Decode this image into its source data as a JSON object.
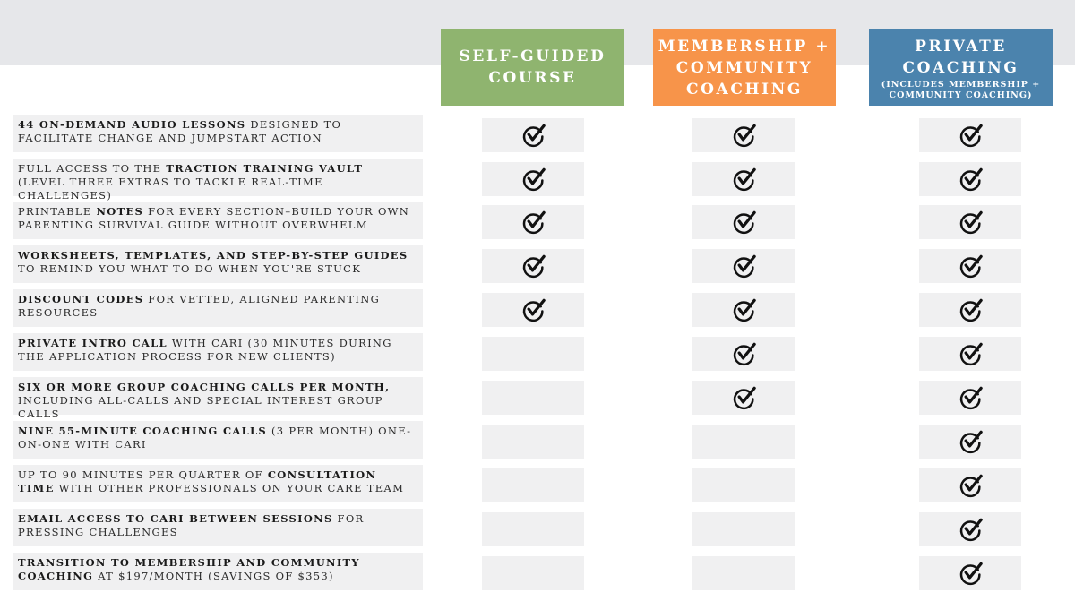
{
  "colors": {
    "self_guided": "#8fb46f",
    "membership": "#f7944a",
    "private": "#4b83ad",
    "cell_bg": "#f0f0f1",
    "top_band": "#e6e7ea"
  },
  "plans": [
    {
      "title": "SELF-GUIDED\nCOURSE",
      "subtitle": ""
    },
    {
      "title": "MEMBERSHIP +\nCOMMUNITY\nCOACHING",
      "subtitle": ""
    },
    {
      "title": "PRIVATE\nCOACHING",
      "subtitle": "(INCLUDES MEMBERSHIP +\nCOMMUNITY COACHING)"
    }
  ],
  "features": [
    {
      "segments": [
        {
          "text": "44 on-demand audio lessons",
          "bold": true
        },
        {
          "text": " designed to facilitate change and jumpstart action",
          "bold": false
        }
      ],
      "checks": [
        true,
        true,
        true
      ]
    },
    {
      "segments": [
        {
          "text": "Full access to the ",
          "bold": false
        },
        {
          "text": "Traction Training Vault",
          "bold": true
        },
        {
          "text": " (Level Three extras to tackle real-time challenges)",
          "bold": false
        }
      ],
      "checks": [
        true,
        true,
        true
      ]
    },
    {
      "segments": [
        {
          "text": "Printable ",
          "bold": false
        },
        {
          "text": "notes",
          "bold": true
        },
        {
          "text": " for every section–build your own parenting survival guide without overwhelm",
          "bold": false
        }
      ],
      "checks": [
        true,
        true,
        true
      ]
    },
    {
      "segments": [
        {
          "text": "Worksheets, templates, and step-by-step guides",
          "bold": true
        },
        {
          "text": " to remind you what to do when you're stuck",
          "bold": false
        }
      ],
      "checks": [
        true,
        true,
        true
      ]
    },
    {
      "segments": [
        {
          "text": "Discount codes",
          "bold": true
        },
        {
          "text": " for vetted, aligned parenting resources",
          "bold": false
        }
      ],
      "checks": [
        true,
        true,
        true
      ]
    },
    {
      "segments": [
        {
          "text": "Private intro call",
          "bold": true
        },
        {
          "text": " with Cari (30 minutes during the application process for new clients)",
          "bold": false
        }
      ],
      "checks": [
        false,
        true,
        true
      ]
    },
    {
      "segments": [
        {
          "text": "Six or more group coaching calls per month,",
          "bold": true
        },
        {
          "text": " including all-calls and special interest group calls",
          "bold": false
        }
      ],
      "checks": [
        false,
        true,
        true
      ]
    },
    {
      "segments": [
        {
          "text": "Nine 55-minute coaching calls",
          "bold": true
        },
        {
          "text": " (3 per month) one-on-one with Cari",
          "bold": false
        }
      ],
      "checks": [
        false,
        false,
        true
      ]
    },
    {
      "segments": [
        {
          "text": "Up to 90 minutes per quarter of ",
          "bold": false
        },
        {
          "text": "consultation time",
          "bold": true
        },
        {
          "text": " with other professionals on your care team",
          "bold": false
        }
      ],
      "checks": [
        false,
        false,
        true
      ]
    },
    {
      "segments": [
        {
          "text": "Email access to Cari between sessions",
          "bold": true
        },
        {
          "text": " for pressing challenges",
          "bold": false
        }
      ],
      "checks": [
        false,
        false,
        true
      ]
    },
    {
      "segments": [
        {
          "text": "Transition to Membership and Community Coaching",
          "bold": true
        },
        {
          "text": " at $197/month (savings of $353)",
          "bold": false
        }
      ],
      "checks": [
        false,
        false,
        true
      ]
    }
  ]
}
